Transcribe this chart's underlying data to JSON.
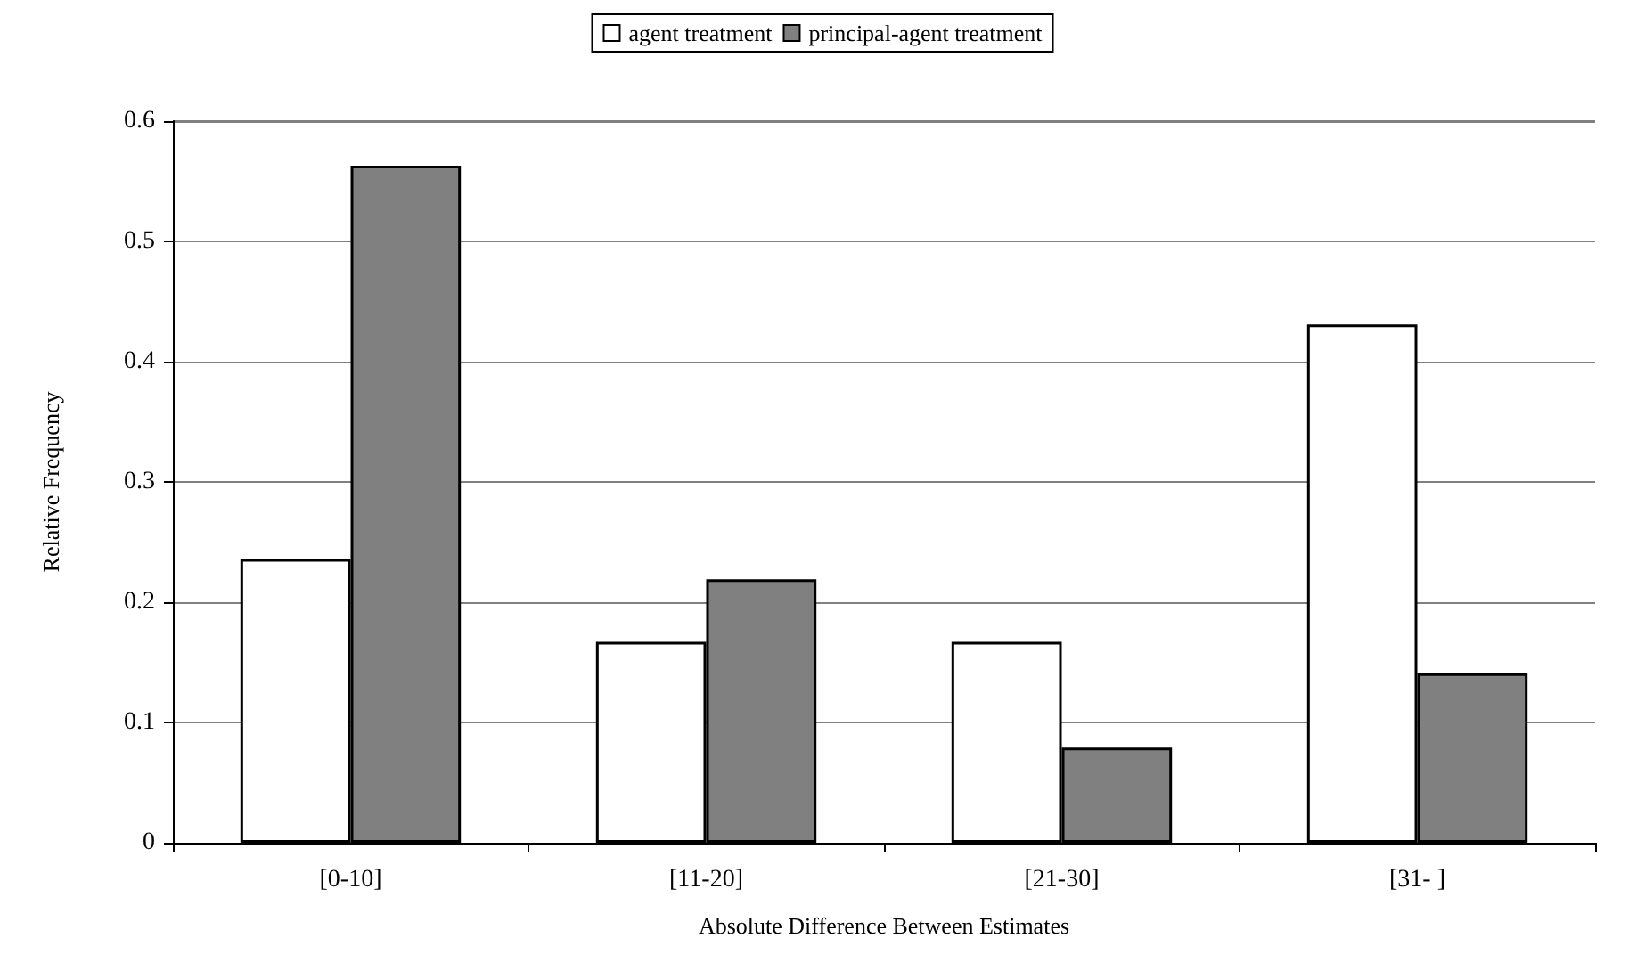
{
  "chart_data": {
    "type": "bar",
    "xlabel": "Absolute Difference Between Estimates",
    "ylabel": "Relative Frequency",
    "categories": [
      "[0-10]",
      "[11-20]",
      "[21-30]",
      "[31- ]"
    ],
    "series": [
      {
        "name": "agent treatment",
        "color": "#ffffff",
        "values": [
          0.236,
          0.167,
          0.167,
          0.431
        ]
      },
      {
        "name": "principal-agent treatment",
        "color": "#808080",
        "values": [
          0.563,
          0.219,
          0.079,
          0.141
        ]
      }
    ],
    "ylim": [
      0,
      0.6
    ],
    "yticks": [
      0,
      0.1,
      0.2,
      0.3,
      0.4,
      0.5,
      0.6
    ],
    "grid": "y",
    "legend": "top"
  }
}
